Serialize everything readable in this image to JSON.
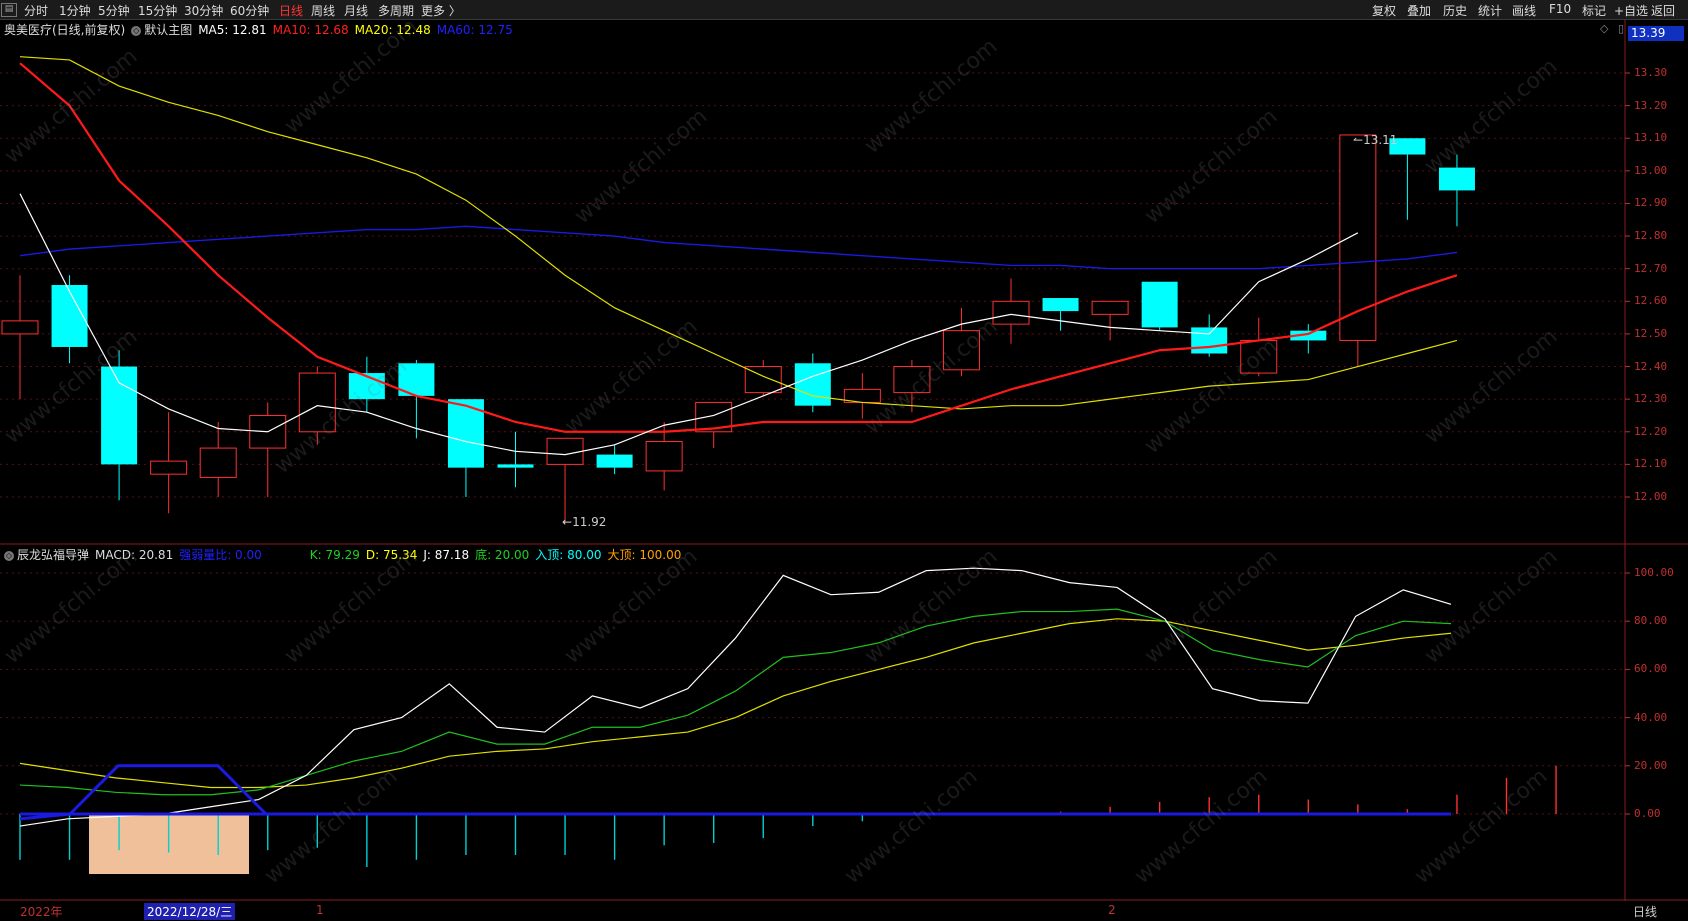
{
  "toolbar": {
    "left": [
      {
        "label": "分时",
        "active": false
      },
      {
        "label": "1分钟",
        "active": false
      },
      {
        "label": "5分钟",
        "active": false
      },
      {
        "label": "15分钟",
        "active": false
      },
      {
        "label": "30分钟",
        "active": false
      },
      {
        "label": "60分钟",
        "active": false
      },
      {
        "label": "日线",
        "active": true
      },
      {
        "label": "周线",
        "active": false
      },
      {
        "label": "月线",
        "active": false
      },
      {
        "label": "多周期",
        "active": false
      },
      {
        "label": "更多 〉",
        "active": false
      }
    ],
    "right": [
      "复权",
      "叠加",
      "历史",
      "统计",
      "画线",
      "F10",
      "标记",
      "+自选",
      "返回"
    ]
  },
  "main_info": {
    "stock": "奥美医疗(日线,前复权)",
    "chart_name": "默认主图",
    "ma": [
      {
        "label": "MA5: 12.81",
        "color": "#ffffff"
      },
      {
        "label": "MA10: 12.68",
        "color": "#ff2020"
      },
      {
        "label": "MA20: 12.48",
        "color": "#ffff00"
      },
      {
        "label": "MA60: 12.75",
        "color": "#2020ff"
      }
    ]
  },
  "sub_info": {
    "indicator": "辰龙弘福导弹",
    "items": [
      {
        "label": "MACD: 20.81",
        "color": "#dddddd"
      },
      {
        "label": "强弱量比: 0.00",
        "color": "#2020ff"
      },
      {
        "label": "K: 79.29",
        "color": "#20d020"
      },
      {
        "label": "D: 75.34",
        "color": "#ffff00"
      },
      {
        "label": "J: 87.18",
        "color": "#ffffff"
      },
      {
        "label": "底: 20.00",
        "color": "#20d020"
      },
      {
        "label": "入顶: 80.00",
        "color": "#00ffff"
      },
      {
        "label": "大顶: 100.00",
        "color": "#ffa000"
      }
    ]
  },
  "current_price": "13.39",
  "price_axis": [
    "13.30",
    "13.20",
    "13.10",
    "13.00",
    "12.90",
    "12.80",
    "12.70",
    "12.60",
    "12.50",
    "12.40",
    "12.30",
    "12.20",
    "12.10",
    "12.00"
  ],
  "sub_axis": [
    "100.00",
    "80.00",
    "60.00",
    "40.00",
    "20.00",
    "0.00"
  ],
  "annotations": {
    "high": "13.11",
    "low": "11.92"
  },
  "date_axis": {
    "year": "2022年",
    "selected": "2022/12/28/三",
    "m1": "1",
    "m2": "2",
    "period": "日线"
  },
  "watermark": "www.cfchi.com",
  "colors": {
    "up": "#ff3030",
    "down": "#00ffff",
    "grid": "#5a0f0f"
  },
  "chart_data": {
    "type": "candlestick",
    "price_ylim": [
      11.85,
      13.42
    ],
    "candles": [
      {
        "o": 12.5,
        "c": 12.54,
        "h": 12.68,
        "l": 12.3
      },
      {
        "o": 12.65,
        "c": 12.46,
        "h": 12.68,
        "l": 12.41
      },
      {
        "o": 12.4,
        "c": 12.1,
        "h": 12.45,
        "l": 11.99
      },
      {
        "o": 12.07,
        "c": 12.11,
        "h": 12.26,
        "l": 11.95
      },
      {
        "o": 12.06,
        "c": 12.15,
        "h": 12.23,
        "l": 12.0
      },
      {
        "o": 12.15,
        "c": 12.25,
        "h": 12.29,
        "l": 12.0
      },
      {
        "o": 12.2,
        "c": 12.38,
        "h": 12.4,
        "l": 12.16
      },
      {
        "o": 12.38,
        "c": 12.3,
        "h": 12.43,
        "l": 12.26
      },
      {
        "o": 12.41,
        "c": 12.31,
        "h": 12.42,
        "l": 12.18
      },
      {
        "o": 12.3,
        "c": 12.09,
        "h": 12.3,
        "l": 12.0
      },
      {
        "o": 12.1,
        "c": 12.09,
        "h": 12.2,
        "l": 12.03
      },
      {
        "o": 12.1,
        "c": 12.18,
        "h": 12.18,
        "l": 11.92
      },
      {
        "o": 12.13,
        "c": 12.09,
        "h": 12.16,
        "l": 12.07
      },
      {
        "o": 12.08,
        "c": 12.17,
        "h": 12.23,
        "l": 12.02
      },
      {
        "o": 12.2,
        "c": 12.29,
        "h": 12.29,
        "l": 12.15
      },
      {
        "o": 12.32,
        "c": 12.4,
        "h": 12.42,
        "l": 12.31
      },
      {
        "o": 12.41,
        "c": 12.28,
        "h": 12.44,
        "l": 12.26
      },
      {
        "o": 12.29,
        "c": 12.33,
        "h": 12.38,
        "l": 12.24
      },
      {
        "o": 12.32,
        "c": 12.4,
        "h": 12.42,
        "l": 12.26
      },
      {
        "o": 12.39,
        "c": 12.51,
        "h": 12.58,
        "l": 12.37
      },
      {
        "o": 12.53,
        "c": 12.6,
        "h": 12.67,
        "l": 12.47
      },
      {
        "o": 12.61,
        "c": 12.57,
        "h": 12.61,
        "l": 12.51
      },
      {
        "o": 12.56,
        "c": 12.6,
        "h": 12.6,
        "l": 12.48
      },
      {
        "o": 12.66,
        "c": 12.52,
        "h": 12.66,
        "l": 12.51
      },
      {
        "o": 12.52,
        "c": 12.44,
        "h": 12.56,
        "l": 12.43
      },
      {
        "o": 12.38,
        "c": 12.48,
        "h": 12.55,
        "l": 12.37
      },
      {
        "o": 12.51,
        "c": 12.48,
        "h": 12.53,
        "l": 12.44
      },
      {
        "o": 12.48,
        "c": 13.11,
        "h": 13.11,
        "l": 12.4
      },
      {
        "o": 13.1,
        "c": 13.05,
        "h": 13.1,
        "l": 12.85
      },
      {
        "o": 13.01,
        "c": 12.94,
        "h": 13.05,
        "l": 12.83
      }
    ],
    "ma5": [
      12.93,
      12.63,
      12.35,
      12.27,
      12.21,
      12.2,
      12.28,
      12.26,
      12.21,
      12.17,
      12.14,
      12.13,
      12.16,
      12.22,
      12.25,
      12.31,
      12.37,
      12.42,
      12.48,
      12.53,
      12.56,
      12.54,
      12.52,
      12.51,
      12.5,
      12.66,
      12.73,
      12.81
    ],
    "ma5_start": 3,
    "ma10": [
      13.33,
      13.2,
      12.97,
      12.83,
      12.68,
      12.55,
      12.43,
      12.37,
      12.31,
      12.28,
      12.23,
      12.2,
      12.2,
      12.2,
      12.21,
      12.23,
      12.23,
      12.23,
      12.23,
      12.28,
      12.33,
      12.37,
      12.41,
      12.45,
      12.46,
      12.48,
      12.5,
      12.57,
      12.63,
      12.68
    ],
    "ma20": [
      13.35,
      13.34,
      13.26,
      13.21,
      13.17,
      13.12,
      13.08,
      13.04,
      12.99,
      12.91,
      12.8,
      12.68,
      12.58,
      12.51,
      12.44,
      12.37,
      12.31,
      12.29,
      12.28,
      12.27,
      12.28,
      12.28,
      12.3,
      12.32,
      12.34,
      12.35,
      12.36,
      12.4,
      12.44,
      12.48
    ],
    "ma60": [
      12.74,
      12.76,
      12.77,
      12.78,
      12.79,
      12.8,
      12.81,
      12.82,
      12.82,
      12.83,
      12.82,
      12.81,
      12.8,
      12.78,
      12.77,
      12.76,
      12.75,
      12.74,
      12.73,
      12.72,
      12.71,
      12.71,
      12.7,
      12.7,
      12.7,
      12.7,
      12.71,
      12.72,
      12.73,
      12.75
    ],
    "sub_ylim": [
      -35,
      108
    ],
    "k": [
      12,
      11,
      9,
      8,
      8,
      10,
      16,
      22,
      26,
      34,
      29,
      29,
      36,
      36,
      41,
      51,
      65,
      67,
      71,
      78,
      82,
      84,
      84,
      85,
      80,
      68,
      64,
      61,
      74,
      80,
      79
    ],
    "d": [
      21,
      18,
      15,
      13,
      11,
      11,
      12,
      15,
      19,
      24,
      26,
      27,
      30,
      32,
      34,
      40,
      49,
      55,
      60,
      65,
      71,
      75,
      79,
      81,
      80,
      76,
      72,
      68,
      70,
      73,
      75
    ],
    "j": [
      -5,
      -2,
      -1,
      0,
      3,
      6,
      16,
      35,
      40,
      54,
      36,
      34,
      49,
      44,
      52,
      73,
      99,
      91,
      92,
      101,
      102,
      101,
      96,
      94,
      81,
      52,
      47,
      46,
      82,
      93,
      87
    ],
    "blue_line": [
      -2,
      0,
      20,
      20,
      20,
      20,
      0,
      0,
      0,
      0,
      0,
      0,
      0,
      0,
      0,
      0,
      0,
      0,
      0,
      0,
      0,
      0,
      0,
      0,
      0,
      0,
      0,
      0,
      0,
      0
    ],
    "hist": [
      -19,
      -19,
      -15,
      -16,
      -17,
      -15,
      -14,
      -22,
      -19,
      -17,
      -17,
      -17,
      -19,
      -13,
      -12,
      -10,
      -5,
      -3,
      0,
      0,
      0,
      1,
      3,
      5,
      7,
      8,
      6,
      4,
      2,
      8,
      15,
      20
    ],
    "hist_start": 0
  }
}
